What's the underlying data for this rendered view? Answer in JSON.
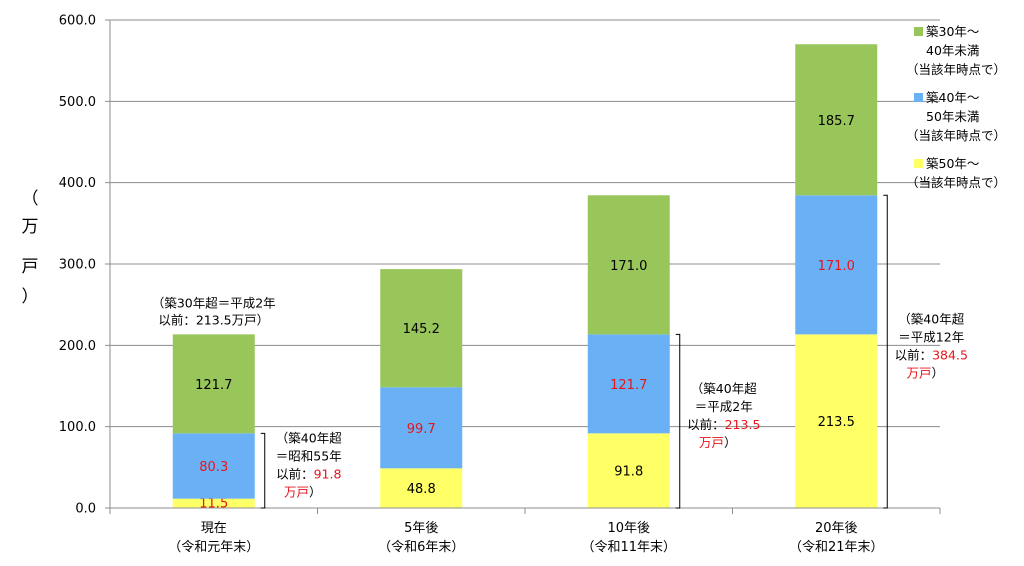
{
  "chart_data": {
    "type": "bar",
    "stacked": true,
    "ylabel": [
      "（",
      "万",
      "戸",
      "）"
    ],
    "ylim": [
      0,
      600
    ],
    "yticks": [
      "0.0",
      "100.0",
      "200.0",
      "300.0",
      "400.0",
      "500.0",
      "600.0"
    ],
    "grid": true,
    "legend_position": "right",
    "categories": [
      [
        "現在",
        "（令和元年末）"
      ],
      [
        "5年後",
        "（令和6年末）"
      ],
      [
        "10年後",
        "（令和11年末）"
      ],
      [
        "20年後",
        "（令和21年末）"
      ]
    ],
    "series": [
      {
        "name": [
          "築50年～",
          "（当該年時点で）"
        ],
        "color": "#ffff66",
        "values": [
          11.5,
          48.8,
          91.8,
          213.5
        ],
        "labels": [
          "11.5",
          "48.8",
          "91.8",
          "213.5"
        ],
        "label_colors": [
          "#e8141b",
          "#000000",
          "#000000",
          "#000000"
        ]
      },
      {
        "name": [
          "築40年～",
          "50年未満",
          "（当該年時点で）"
        ],
        "color": "#6ab0f5",
        "values": [
          80.3,
          99.7,
          121.7,
          171.0
        ],
        "labels": [
          "80.3",
          "99.7",
          "121.7",
          "171.0"
        ],
        "label_colors": [
          "#e8141b",
          "#e8141b",
          "#e8141b",
          "#e8141b"
        ]
      },
      {
        "name": [
          "築30年～",
          "40年未満",
          "（当該年時点で）"
        ],
        "color": "#99c65a",
        "values": [
          121.7,
          145.2,
          171.0,
          185.7
        ],
        "labels": [
          "121.7",
          "145.2",
          "171.0",
          "185.7"
        ],
        "label_colors": [
          "#000000",
          "#000000",
          "#000000",
          "#000000"
        ]
      }
    ],
    "annotations": {
      "top_note": [
        "（築30年超＝平成2年",
        "以前：213.5万戸）"
      ],
      "bracket_notes": [
        {
          "lines": [
            "（築40年超",
            "＝昭和55年",
            "以前："
          ],
          "value": "91.8",
          "unit": "万戸",
          "close": "）",
          "category": 0
        },
        {
          "lines": [
            "（築40年超",
            "＝平成2年",
            "以前："
          ],
          "value": "213.5",
          "unit": "万戸",
          "close": "）",
          "category": 2
        },
        {
          "lines": [
            "（築40年超",
            "＝平成12年",
            "以前："
          ],
          "value": "384.5",
          "unit": "万戸",
          "close": "）",
          "category": 3
        }
      ]
    }
  }
}
